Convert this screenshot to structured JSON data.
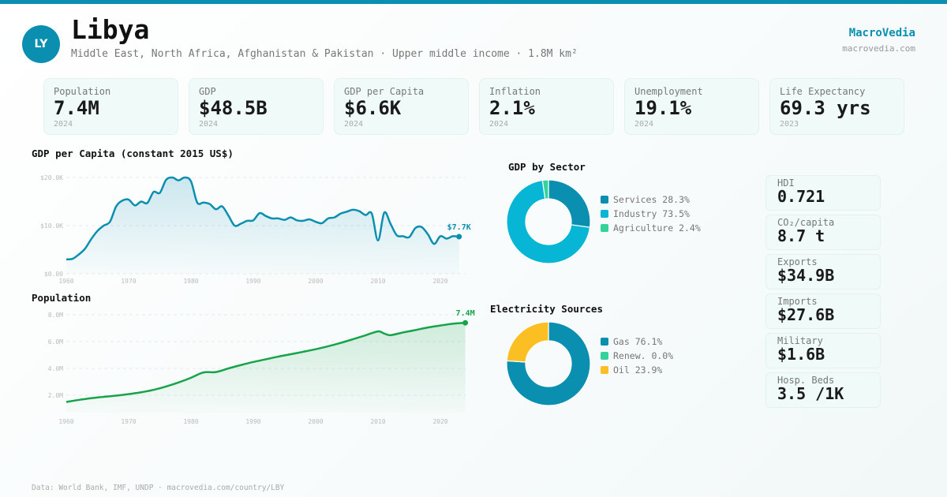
{
  "header": {
    "avatar_initials": "LY",
    "country": "Libya",
    "subtitle": "Middle East, North Africa, Afghanistan & Pakistan · Upper middle income · 1.8M km²",
    "brand": "MacroVedia",
    "brand_url": "macrovedia.com"
  },
  "stats": [
    {
      "label": "Population",
      "value": "7.4M",
      "year": "2024"
    },
    {
      "label": "GDP",
      "value": "$48.5B",
      "year": "2024"
    },
    {
      "label": "GDP per Capita",
      "value": "$6.6K",
      "year": "2024"
    },
    {
      "label": "Inflation",
      "value": "2.1%",
      "year": "2024"
    },
    {
      "label": "Unemployment",
      "value": "19.1%",
      "year": "2024"
    },
    {
      "label": "Life Expectancy",
      "value": "69.3 yrs",
      "year": "2023"
    }
  ],
  "side_stats": [
    {
      "label": "HDI",
      "value": "0.721"
    },
    {
      "label": "CO₂/capita",
      "value": "8.7 t"
    },
    {
      "label": "Exports",
      "value": "$34.9B"
    },
    {
      "label": "Imports",
      "value": "$27.6B"
    },
    {
      "label": "Military",
      "value": "$1.6B"
    },
    {
      "label": "Hosp. Beds",
      "value": "3.5 /1K"
    }
  ],
  "footer": "Data: World Bank, IMF, UNDP · macrovedia.com/country/LBY",
  "colors": {
    "accent": "#0a8fb0",
    "population_line": "#16a34a",
    "services": "#0a8fb0",
    "industry": "#06b6d4",
    "agriculture": "#34d399",
    "gas": "#0a8fb0",
    "renew": "#34d399",
    "oil": "#fbbf24"
  },
  "chart_data": [
    {
      "type": "area",
      "title": "GDP per Capita (constant 2015 US$)",
      "xlabel": "",
      "ylabel": "",
      "ylim": [
        0,
        20000
      ],
      "yticks": [
        0,
        10000,
        20000
      ],
      "ytick_labels": [
        "$0.00",
        "$10.0K",
        "$20.0K"
      ],
      "xticks": [
        1960,
        1970,
        1980,
        1990,
        2000,
        2010,
        2020
      ],
      "grid": true,
      "end_label": "$7.7K",
      "x": [
        1960,
        1961,
        1962,
        1963,
        1964,
        1965,
        1966,
        1967,
        1968,
        1969,
        1970,
        1971,
        1972,
        1973,
        1974,
        1975,
        1976,
        1977,
        1978,
        1979,
        1980,
        1981,
        1982,
        1983,
        1984,
        1985,
        1986,
        1987,
        1988,
        1989,
        1990,
        1991,
        1992,
        1993,
        1994,
        1995,
        1996,
        1997,
        1998,
        1999,
        2000,
        2001,
        2002,
        2003,
        2004,
        2005,
        2006,
        2007,
        2008,
        2009,
        2010,
        2011,
        2012,
        2013,
        2014,
        2015,
        2016,
        2017,
        2018,
        2019,
        2020,
        2021,
        2022,
        2023
      ],
      "values": [
        3000,
        3100,
        4000,
        5200,
        7200,
        8900,
        10000,
        10800,
        14000,
        15200,
        15400,
        14200,
        15000,
        14700,
        17000,
        16800,
        19500,
        20000,
        19400,
        20000,
        19200,
        14800,
        14800,
        14500,
        13400,
        14000,
        12100,
        10000,
        10400,
        11000,
        11100,
        12600,
        12000,
        11500,
        11500,
        11200,
        11700,
        11100,
        11000,
        11300,
        10800,
        10500,
        11500,
        11700,
        12500,
        12900,
        13300,
        13000,
        12200,
        12500,
        6900,
        12700,
        10400,
        8000,
        7800,
        7600,
        9500,
        9700,
        8200,
        6200,
        7800,
        7300,
        7800,
        7700
      ]
    },
    {
      "type": "area",
      "title": "Population",
      "xlabel": "",
      "ylabel": "",
      "ylim": [
        0,
        8000000
      ],
      "yticks": [
        2000000,
        4000000,
        6000000,
        8000000
      ],
      "ytick_labels": [
        "2.0M",
        "4.0M",
        "6.0M",
        "8.0M"
      ],
      "xticks": [
        1960,
        1970,
        1980,
        1990,
        2000,
        2010,
        2020
      ],
      "grid": true,
      "end_label": "7.4M",
      "x": [
        1960,
        1962,
        1964,
        1966,
        1968,
        1970,
        1972,
        1974,
        1976,
        1978,
        1980,
        1982,
        1984,
        1986,
        1988,
        1990,
        1992,
        1994,
        1996,
        1998,
        2000,
        2002,
        2004,
        2006,
        2008,
        2010,
        2011,
        2012,
        2014,
        2016,
        2018,
        2020,
        2022,
        2024
      ],
      "values": [
        1500000,
        1650000,
        1780000,
        1880000,
        1970000,
        2080000,
        2220000,
        2400000,
        2650000,
        2950000,
        3300000,
        3700000,
        3730000,
        4000000,
        4250000,
        4480000,
        4680000,
        4880000,
        5060000,
        5240000,
        5430000,
        5650000,
        5900000,
        6180000,
        6470000,
        6760000,
        6600000,
        6480000,
        6680000,
        6860000,
        7050000,
        7200000,
        7330000,
        7400000
      ]
    },
    {
      "type": "pie",
      "title": "GDP by Sector",
      "labels": [
        "Services",
        "Industry",
        "Agriculture"
      ],
      "values": [
        28.3,
        73.5,
        2.4
      ],
      "legend_texts": [
        "Services 28.3%",
        "Industry 73.5%",
        "Agriculture 2.4%"
      ],
      "legend": "right"
    },
    {
      "type": "pie",
      "title": "Electricity Sources",
      "labels": [
        "Gas",
        "Renew.",
        "Oil"
      ],
      "values": [
        76.1,
        0.0,
        23.9
      ],
      "legend_texts": [
        "Gas 76.1%",
        "Renew. 0.0%",
        "Oil 23.9%"
      ],
      "legend": "right"
    }
  ]
}
